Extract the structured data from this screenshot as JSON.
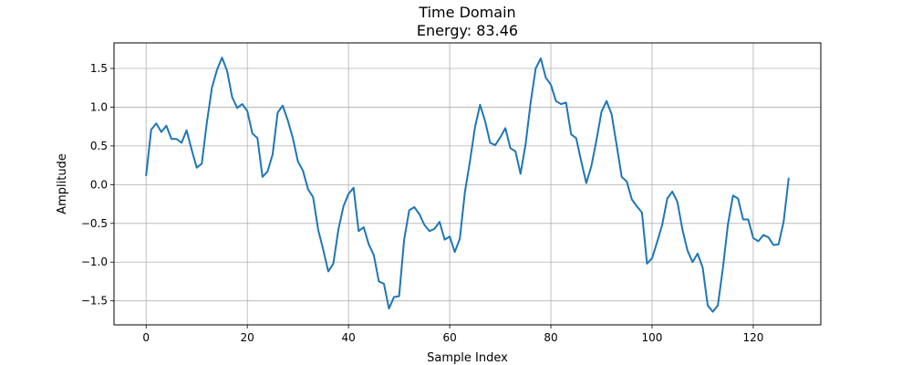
{
  "chart_data": {
    "type": "line",
    "title": "Time Domain",
    "subtitle": "Energy: 83.46",
    "xlabel": "Sample Index",
    "ylabel": "Amplitude",
    "xlim": [
      -6.35,
      133.35
    ],
    "ylim": [
      -1.81,
      1.83
    ],
    "xticks": [
      0,
      20,
      40,
      60,
      80,
      100,
      120
    ],
    "xtick_labels": [
      "0",
      "20",
      "40",
      "60",
      "80",
      "100",
      "120"
    ],
    "yticks": [
      -1.5,
      -1.0,
      -0.5,
      0.0,
      0.5,
      1.0,
      1.5
    ],
    "ytick_labels": [
      "−1.5",
      "−1.0",
      "−0.5",
      "0.0",
      "0.5",
      "1.0",
      "1.5"
    ],
    "grid": true,
    "line_color": "#1f77b4",
    "series": [
      {
        "x": [
          0,
          1,
          2,
          3,
          4,
          5,
          6,
          7,
          8,
          9,
          10,
          11,
          12,
          13,
          14,
          15,
          16,
          17,
          18,
          19,
          20,
          21,
          22,
          23,
          24,
          25,
          26,
          27,
          28,
          29,
          30,
          31,
          32,
          33,
          34,
          35,
          36,
          37,
          38,
          39,
          40,
          41,
          42,
          43,
          44,
          45,
          46,
          47,
          48,
          49,
          50,
          51,
          52,
          53,
          54,
          55,
          56,
          57,
          58,
          59,
          60,
          61,
          62,
          63,
          64,
          65,
          66,
          67,
          68,
          69,
          70,
          71,
          72,
          73,
          74,
          75,
          76,
          77,
          78,
          79,
          80,
          81,
          82,
          83,
          84,
          85,
          86,
          87,
          88,
          89,
          90,
          91,
          92,
          93,
          94,
          95,
          96,
          97,
          98,
          99,
          100,
          101,
          102,
          103,
          104,
          105,
          106,
          107,
          108,
          109,
          110,
          111,
          112,
          113,
          114,
          115,
          116,
          117,
          118,
          119,
          120,
          121,
          122,
          123,
          124,
          125,
          126,
          127
        ],
        "values": [
          0.12,
          0.71,
          0.79,
          0.68,
          0.76,
          0.59,
          0.59,
          0.54,
          0.7,
          0.45,
          0.22,
          0.27,
          0.8,
          1.25,
          1.48,
          1.64,
          1.47,
          1.13,
          0.99,
          1.04,
          0.95,
          0.66,
          0.6,
          0.1,
          0.17,
          0.39,
          0.93,
          1.02,
          0.83,
          0.6,
          0.3,
          0.18,
          -0.06,
          -0.16,
          -0.58,
          -0.84,
          -1.12,
          -1.02,
          -0.58,
          -0.28,
          -0.12,
          -0.04,
          -0.6,
          -0.55,
          -0.77,
          -0.91,
          -1.25,
          -1.28,
          -1.6,
          -1.45,
          -1.44,
          -0.71,
          -0.33,
          -0.29,
          -0.38,
          -0.52,
          -0.6,
          -0.57,
          -0.48,
          -0.71,
          -0.67,
          -0.87,
          -0.7,
          -0.1,
          0.3,
          0.74,
          1.03,
          0.82,
          0.54,
          0.51,
          0.61,
          0.73,
          0.47,
          0.43,
          0.14,
          0.52,
          1.06,
          1.5,
          1.63,
          1.38,
          1.29,
          1.08,
          1.04,
          1.06,
          0.65,
          0.6,
          0.3,
          0.02,
          0.24,
          0.57,
          0.94,
          1.08,
          0.91,
          0.51,
          0.1,
          0.04,
          -0.19,
          -0.28,
          -0.36,
          -1.02,
          -0.95,
          -0.74,
          -0.52,
          -0.18,
          -0.09,
          -0.22,
          -0.58,
          -0.85,
          -1.0,
          -0.89,
          -1.07,
          -1.56,
          -1.64,
          -1.56,
          -1.08,
          -0.51,
          -0.14,
          -0.18,
          -0.45,
          -0.45,
          -0.69,
          -0.73,
          -0.65,
          -0.68,
          -0.78,
          -0.77,
          -0.48,
          0.08
        ]
      }
    ]
  }
}
